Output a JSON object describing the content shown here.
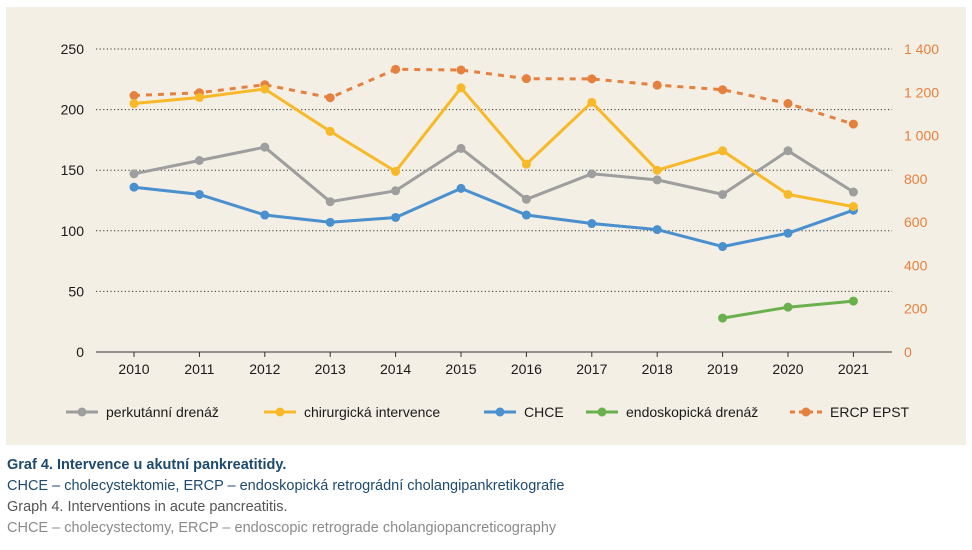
{
  "chart_data": {
    "type": "line",
    "categories": [
      "2010",
      "2011",
      "2012",
      "2013",
      "2014",
      "2015",
      "2016",
      "2017",
      "2018",
      "2019",
      "2020",
      "2021"
    ],
    "y_left": {
      "ylim": [
        0,
        250
      ],
      "ticks": [
        0,
        50,
        100,
        150,
        200,
        250
      ],
      "tick_labels": [
        "0",
        "50",
        "100",
        "150",
        "200",
        "250"
      ],
      "color": "#1a1a1a"
    },
    "y_right": {
      "ylim": [
        0,
        1400
      ],
      "ticks": [
        0,
        200,
        400,
        600,
        800,
        1000,
        1200,
        1400
      ],
      "tick_labels": [
        "0",
        "200",
        "400",
        "600",
        "800",
        "1 000",
        "1 200",
        "1 400"
      ],
      "color": "#e5803f"
    },
    "grid": "dotted horizontal",
    "legend_position": "bottom",
    "series": [
      {
        "name": "perkutánní drenáž",
        "axis": "left",
        "color": "#9e9e9e",
        "style": "solid",
        "values": [
          147,
          158,
          169,
          124,
          133,
          168,
          126,
          147,
          142,
          130,
          166,
          132
        ]
      },
      {
        "name": "chirurgická intervence",
        "axis": "left",
        "color": "#f7b928",
        "style": "solid",
        "values": [
          205,
          210,
          217,
          182,
          149,
          218,
          155,
          206,
          150,
          166,
          130,
          120
        ]
      },
      {
        "name": "CHCE",
        "axis": "left",
        "color": "#4a8fce",
        "style": "solid",
        "values": [
          136,
          130,
          113,
          107,
          111,
          135,
          113,
          106,
          101,
          87,
          98,
          117
        ]
      },
      {
        "name": "endoskopická drenáž",
        "axis": "left",
        "color": "#6ab04c",
        "style": "solid",
        "values": [
          null,
          null,
          null,
          null,
          null,
          null,
          null,
          null,
          null,
          28,
          37,
          42
        ]
      },
      {
        "name": "ERCP EPST",
        "axis": "right",
        "color": "#e5803f",
        "style": "dashed",
        "values": [
          1185,
          1198,
          1235,
          1175,
          1306,
          1303,
          1263,
          1262,
          1233,
          1212,
          1148,
          1053
        ]
      }
    ]
  },
  "caption": {
    "title_cz": "Graf 4. Intervence u akutní pankreatitidy.",
    "note_cz": "CHCE – cholecystektomie, ERCP – endoskopická retrográdní cholangipankretikografie",
    "title_en": "Graph 4. Interventions in acute pancreatitis.",
    "note_en": "CHCE – cholecystectomy, ERCP – endoscopic retrograde cholangiopancreticography"
  }
}
